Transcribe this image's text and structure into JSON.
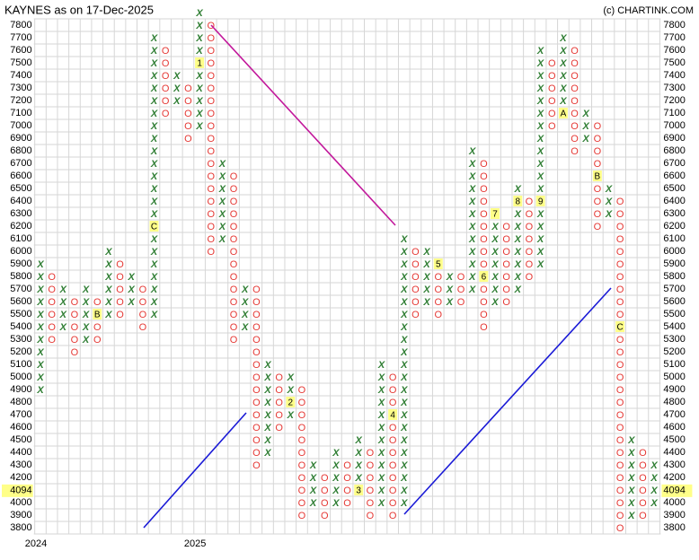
{
  "chart_data": {
    "type": "point_and_figure",
    "title": "KAYNES as on 17-Dec-2025",
    "source": "(c) CHARTINK.COM",
    "box_size": 100,
    "ylim": [
      3800,
      7800
    ],
    "yticks": [
      3800,
      3900,
      4000,
      4100,
      4200,
      4300,
      4400,
      4500,
      4600,
      4700,
      4800,
      4900,
      5000,
      5100,
      5200,
      5300,
      5400,
      5500,
      5600,
      5700,
      5800,
      5900,
      6000,
      6100,
      6200,
      6300,
      6400,
      6500,
      6600,
      6700,
      6800,
      6900,
      7000,
      7100,
      7200,
      7300,
      7400,
      7500,
      7600,
      7700,
      7800
    ],
    "last_price": 4094,
    "grid": true,
    "colors": {
      "X": "#2e7d32",
      "O": "#e53935"
    },
    "columns": [
      {
        "type": "X",
        "low": 4900,
        "high": 5900,
        "year": "2024"
      },
      {
        "type": "O",
        "low": 5300,
        "high": 5800
      },
      {
        "type": "X",
        "low": 5400,
        "high": 5700
      },
      {
        "type": "O",
        "low": 5200,
        "high": 5600
      },
      {
        "type": "X",
        "low": 5300,
        "high": 5700
      },
      {
        "type": "O",
        "low": 5300,
        "high": 5600,
        "marks": [
          {
            "value": 5500,
            "label": "B"
          }
        ]
      },
      {
        "type": "X",
        "low": 5500,
        "high": 6000
      },
      {
        "type": "O",
        "low": 5500,
        "high": 5900
      },
      {
        "type": "X",
        "low": 5600,
        "high": 5800
      },
      {
        "type": "O",
        "low": 5400,
        "high": 5700
      },
      {
        "type": "X",
        "low": 5500,
        "high": 7700,
        "marks": [
          {
            "value": 6200,
            "label": "C"
          }
        ]
      },
      {
        "type": "O",
        "low": 7100,
        "high": 7600
      },
      {
        "type": "X",
        "low": 7200,
        "high": 7400
      },
      {
        "type": "O",
        "low": 6900,
        "high": 7300
      },
      {
        "type": "X",
        "low": 7000,
        "high": 7900,
        "year": "2025",
        "marks": [
          {
            "value": 7500,
            "label": "1"
          }
        ]
      },
      {
        "type": "O",
        "low": 6000,
        "high": 7800
      },
      {
        "type": "X",
        "low": 6100,
        "high": 6700
      },
      {
        "type": "O",
        "low": 5300,
        "high": 6600
      },
      {
        "type": "X",
        "low": 5400,
        "high": 5700
      },
      {
        "type": "O",
        "low": 4300,
        "high": 5700
      },
      {
        "type": "X",
        "low": 4400,
        "high": 5100
      },
      {
        "type": "O",
        "low": 4600,
        "high": 5000
      },
      {
        "type": "X",
        "low": 4700,
        "high": 5000,
        "marks": [
          {
            "value": 4800,
            "label": "2"
          }
        ]
      },
      {
        "type": "O",
        "low": 3900,
        "high": 4900
      },
      {
        "type": "X",
        "low": 4000,
        "high": 4300
      },
      {
        "type": "O",
        "low": 3900,
        "high": 4200
      },
      {
        "type": "X",
        "low": 4000,
        "high": 4400
      },
      {
        "type": "O",
        "low": 4000,
        "high": 4300
      },
      {
        "type": "X",
        "low": 4100,
        "high": 4500,
        "marks": [
          {
            "value": 4100,
            "label": "3"
          }
        ]
      },
      {
        "type": "O",
        "low": 3900,
        "high": 4400
      },
      {
        "type": "X",
        "low": 4000,
        "high": 5100
      },
      {
        "type": "O",
        "low": 3900,
        "high": 5000,
        "marks": [
          {
            "value": 4700,
            "label": "4"
          }
        ]
      },
      {
        "type": "X",
        "low": 4000,
        "high": 6100
      },
      {
        "type": "O",
        "low": 5500,
        "high": 6000
      },
      {
        "type": "X",
        "low": 5600,
        "high": 6000
      },
      {
        "type": "O",
        "low": 5500,
        "high": 5900,
        "marks": [
          {
            "value": 5900,
            "label": "5"
          }
        ]
      },
      {
        "type": "X",
        "low": 5600,
        "high": 5800
      },
      {
        "type": "O",
        "low": 5600,
        "high": 5800
      },
      {
        "type": "X",
        "low": 5700,
        "high": 6800
      },
      {
        "type": "O",
        "low": 5400,
        "high": 6700,
        "marks": [
          {
            "value": 5800,
            "label": "6"
          }
        ]
      },
      {
        "type": "X",
        "low": 5600,
        "high": 6300,
        "marks": [
          {
            "value": 6300,
            "label": "7"
          }
        ]
      },
      {
        "type": "O",
        "low": 5600,
        "high": 6200
      },
      {
        "type": "X",
        "low": 5700,
        "high": 6500,
        "marks": [
          {
            "value": 6400,
            "label": "8"
          }
        ]
      },
      {
        "type": "O",
        "low": 5800,
        "high": 6400
      },
      {
        "type": "X",
        "low": 5900,
        "high": 7600,
        "marks": [
          {
            "value": 6400,
            "label": "9"
          }
        ]
      },
      {
        "type": "O",
        "low": 7000,
        "high": 7500
      },
      {
        "type": "X",
        "low": 7100,
        "high": 7700,
        "marks": [
          {
            "value": 7100,
            "label": "A"
          }
        ]
      },
      {
        "type": "O",
        "low": 6800,
        "high": 7600
      },
      {
        "type": "X",
        "low": 6900,
        "high": 7100
      },
      {
        "type": "O",
        "low": 6200,
        "high": 7000,
        "marks": [
          {
            "value": 6600,
            "label": "B"
          }
        ]
      },
      {
        "type": "X",
        "low": 6300,
        "high": 6500
      },
      {
        "type": "O",
        "low": 3800,
        "high": 6400,
        "marks": [
          {
            "value": 5400,
            "label": "C"
          }
        ]
      },
      {
        "type": "X",
        "low": 3900,
        "high": 4500
      },
      {
        "type": "O",
        "low": 3900,
        "high": 4400
      },
      {
        "type": "X",
        "low": 4000,
        "high": 4300
      }
    ]
  }
}
